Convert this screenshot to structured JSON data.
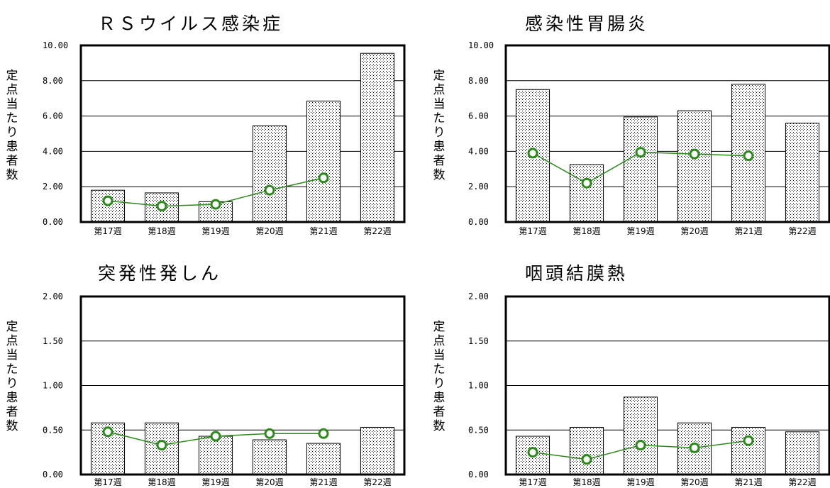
{
  "chart_data": [
    {
      "type": "bar",
      "title": "ＲＳウイルス感染症",
      "ylabel": "定点当たり患者数",
      "ylim": [
        0,
        10
      ],
      "yticks": [
        "0.00",
        "2.00",
        "4.00",
        "6.00",
        "8.00",
        "10.00"
      ],
      "categories": [
        "第17週",
        "第18週",
        "第19週",
        "第20週",
        "第21週",
        "第22週"
      ],
      "series": [
        {
          "kind": "bar",
          "values": [
            1.8,
            1.65,
            1.15,
            5.45,
            6.85,
            9.55
          ]
        },
        {
          "kind": "line",
          "values": [
            1.2,
            0.9,
            1.0,
            1.8,
            2.5,
            null
          ]
        }
      ]
    },
    {
      "type": "bar",
      "title": "感染性胃腸炎",
      "ylabel": "定点当たり患者数",
      "ylim": [
        0,
        10
      ],
      "yticks": [
        "0.00",
        "2.00",
        "4.00",
        "6.00",
        "8.00",
        "10.00"
      ],
      "categories": [
        "第17週",
        "第18週",
        "第19週",
        "第20週",
        "第21週",
        "第22週"
      ],
      "series": [
        {
          "kind": "bar",
          "values": [
            7.5,
            3.25,
            5.95,
            6.3,
            7.8,
            5.6
          ]
        },
        {
          "kind": "line",
          "values": [
            3.9,
            2.2,
            3.95,
            3.85,
            3.75,
            null
          ]
        }
      ]
    },
    {
      "type": "bar",
      "title": "突発性発しん",
      "ylabel": "定点当たり患者数",
      "ylim": [
        0,
        2
      ],
      "yticks": [
        "0.00",
        "0.50",
        "1.00",
        "1.50",
        "2.00"
      ],
      "categories": [
        "第17週",
        "第18週",
        "第19週",
        "第20週",
        "第21週",
        "第22週"
      ],
      "series": [
        {
          "kind": "bar",
          "values": [
            0.58,
            0.58,
            0.43,
            0.39,
            0.35,
            0.53
          ]
        },
        {
          "kind": "line",
          "values": [
            0.48,
            0.33,
            0.43,
            0.46,
            0.46,
            null
          ]
        }
      ]
    },
    {
      "type": "bar",
      "title": "咽頭結膜熱",
      "ylabel": "定点当たり患者数",
      "ylim": [
        0,
        2
      ],
      "yticks": [
        "0.00",
        "0.50",
        "1.00",
        "1.50",
        "2.00"
      ],
      "categories": [
        "第17週",
        "第18週",
        "第19週",
        "第20週",
        "第21週",
        "第22週"
      ],
      "series": [
        {
          "kind": "bar",
          "values": [
            0.43,
            0.53,
            0.87,
            0.58,
            0.53,
            0.48
          ]
        },
        {
          "kind": "line",
          "values": [
            0.25,
            0.17,
            0.33,
            0.3,
            0.38,
            null
          ]
        }
      ]
    }
  ],
  "style": {
    "line_color": "#2b8a1a",
    "marker_fill": "#ffffff",
    "bar_fill": "#d8d8d8",
    "bar_stroke": "#000000",
    "frame_color": "#000000"
  }
}
